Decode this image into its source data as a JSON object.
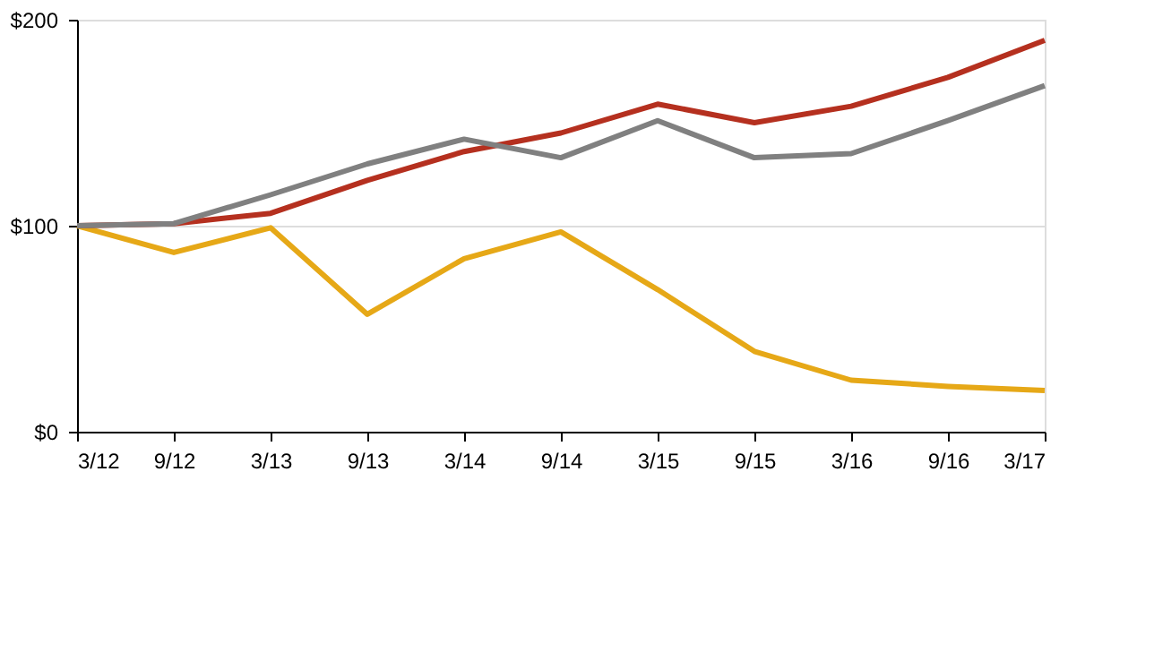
{
  "chart_data": {
    "type": "line",
    "categories": [
      "3/12",
      "9/12",
      "3/13",
      "9/13",
      "3/14",
      "9/14",
      "3/15",
      "9/15",
      "3/16",
      "9/16",
      "3/17"
    ],
    "series": [
      {
        "color": "#e6a817",
        "values": [
          100,
          87,
          99,
          57,
          84,
          97,
          69,
          39,
          25,
          22,
          20
        ]
      },
      {
        "color": "#b5301f",
        "values": [
          100,
          101,
          106,
          122,
          136,
          145,
          159,
          150,
          158,
          172,
          190
        ]
      },
      {
        "color": "#808080",
        "values": [
          100,
          101,
          115,
          130,
          142,
          133,
          151,
          133,
          135,
          151,
          168
        ]
      }
    ],
    "ylim": [
      0,
      200
    ],
    "yticks": [
      {
        "value": 0,
        "label": "$0"
      },
      {
        "value": 100,
        "label": "$100"
      },
      {
        "value": 200,
        "label": "$200"
      }
    ],
    "grid": "y",
    "legend": false,
    "marker": "none",
    "line_style": "solid"
  }
}
